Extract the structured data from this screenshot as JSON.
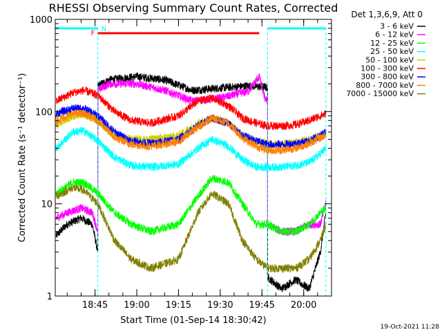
{
  "chart_data": {
    "type": "line",
    "title": "RHESSI Observing Summary Count Rates, Corrected",
    "xlabel": "Start Time (01-Sep-14 18:30:42)",
    "ylabel": "Corrected Count Rate (s⁻¹ detector⁻¹)",
    "ylim": [
      1,
      1000
    ],
    "yscale": "log",
    "xlim": [
      "18:30:42",
      "20:10:00"
    ],
    "x_ticks": [
      "18:45",
      "19:00",
      "19:15",
      "19:30",
      "19:45",
      "20:00"
    ],
    "y_ticks": [
      "1",
      "10",
      "100",
      "1000"
    ],
    "legend_title": "Det 1,3,6,9, Att 0",
    "legend_position": "right",
    "timestamp": "19-Oct-2021 11:28",
    "flags": [
      {
        "label": "N",
        "color": "#00ffff",
        "segments": [
          [
            "18:30:42",
            "18:46:00"
          ],
          [
            "19:47:00",
            "20:08:00"
          ]
        ]
      },
      {
        "label": "F",
        "color": "#ff0000",
        "segments": [
          [
            "18:46:00",
            "19:44:00"
          ]
        ]
      }
    ],
    "boundaries": [
      "18:46:00",
      "19:47:00",
      "20:08:00"
    ],
    "series": [
      {
        "name": "3 - 6 keV",
        "color": "#000000",
        "x": [
          "18:31",
          "18:35",
          "18:40",
          "18:44",
          "18:46:00",
          "18:46:01",
          "18:50",
          "19:00",
          "19:10",
          "19:20",
          "19:30",
          "19:40",
          "19:46",
          "19:47:00",
          "19:47:01",
          "19:52",
          "19:57",
          "20:02",
          "20:06",
          "20:08"
        ],
        "y": [
          4.5,
          6,
          7,
          6,
          3,
          190,
          220,
          240,
          220,
          170,
          180,
          190,
          185,
          180,
          1.6,
          1.2,
          1.5,
          1.2,
          3,
          8
        ]
      },
      {
        "name": "6 - 12 keV",
        "color": "#ff00ff",
        "x": [
          "18:31",
          "18:35",
          "18:40",
          "18:44",
          "18:46:00",
          "18:46:01",
          "18:50",
          "19:00",
          "19:10",
          "19:20",
          "19:30",
          "19:40",
          "19:44",
          "19:46",
          "19:47:00",
          "19:47:01",
          "19:52",
          "19:57",
          "20:02",
          "20:06",
          "20:08"
        ],
        "y": [
          7,
          8,
          9,
          8,
          5,
          170,
          200,
          200,
          170,
          130,
          140,
          165,
          240,
          140,
          130,
          6,
          5,
          5,
          6,
          6,
          10
        ]
      },
      {
        "name": "12 - 25 keV",
        "color": "#00ff00",
        "x": [
          "18:31",
          "18:37",
          "18:41",
          "18:46",
          "18:52",
          "18:58",
          "19:05",
          "19:15",
          "19:22",
          "19:27",
          "19:33",
          "19:38",
          "19:43",
          "19:47",
          "19:52",
          "19:57",
          "20:02",
          "20:06",
          "20:08"
        ],
        "y": [
          13,
          17,
          17,
          13,
          8,
          6,
          5,
          6,
          12,
          19,
          17,
          10,
          6,
          6,
          5,
          5,
          6,
          8,
          9
        ]
      },
      {
        "name": "25 - 50 keV",
        "color": "#00ffff",
        "x": [
          "18:31",
          "18:37",
          "18:41",
          "18:46",
          "18:52",
          "18:58",
          "19:05",
          "19:15",
          "19:22",
          "19:27",
          "19:33",
          "19:38",
          "19:43",
          "19:47",
          "19:52",
          "19:57",
          "20:02",
          "20:06",
          "20:08"
        ],
        "y": [
          40,
          60,
          62,
          48,
          32,
          26,
          25,
          27,
          40,
          50,
          42,
          30,
          25,
          25,
          25,
          26,
          28,
          35,
          40
        ]
      },
      {
        "name": "50 - 100 keV",
        "color": "#cccc00",
        "x": [
          "18:31",
          "18:37",
          "18:41",
          "18:46",
          "18:52",
          "18:58",
          "19:05",
          "19:15",
          "19:22",
          "19:27",
          "19:33",
          "19:38",
          "19:43",
          "19:47",
          "19:52",
          "19:57",
          "20:02",
          "20:06",
          "20:08"
        ],
        "y": [
          70,
          90,
          95,
          80,
          55,
          50,
          50,
          55,
          75,
          85,
          75,
          55,
          48,
          45,
          44,
          46,
          50,
          55,
          58
        ]
      },
      {
        "name": "100 - 300 keV",
        "color": "#ff0000",
        "x": [
          "18:31",
          "18:37",
          "18:41",
          "18:46",
          "18:52",
          "18:58",
          "19:05",
          "19:15",
          "19:22",
          "19:27",
          "19:33",
          "19:38",
          "19:43",
          "19:47",
          "19:52",
          "19:57",
          "20:02",
          "20:06",
          "20:08"
        ],
        "y": [
          130,
          160,
          170,
          150,
          100,
          80,
          75,
          90,
          130,
          140,
          115,
          85,
          75,
          70,
          70,
          72,
          80,
          90,
          95
        ]
      },
      {
        "name": "300 - 800 keV",
        "color": "#0000ff",
        "x": [
          "18:31",
          "18:37",
          "18:41",
          "18:46",
          "18:52",
          "18:58",
          "19:05",
          "19:15",
          "19:22",
          "19:27",
          "19:33",
          "19:38",
          "19:43",
          "19:47",
          "19:52",
          "19:57",
          "20:02",
          "20:06",
          "20:08"
        ],
        "y": [
          95,
          108,
          108,
          90,
          60,
          48,
          45,
          50,
          70,
          85,
          75,
          55,
          48,
          44,
          44,
          45,
          48,
          55,
          60
        ]
      },
      {
        "name": "800 - 7000 keV",
        "color": "#ff8000",
        "x": [
          "18:31",
          "18:37",
          "18:41",
          "18:46",
          "18:52",
          "18:58",
          "19:05",
          "19:15",
          "19:22",
          "19:27",
          "19:33",
          "19:38",
          "19:43",
          "19:47",
          "19:52",
          "19:57",
          "20:02",
          "20:06",
          "20:08"
        ],
        "y": [
          80,
          95,
          95,
          80,
          52,
          44,
          42,
          47,
          68,
          85,
          75,
          52,
          42,
          38,
          38,
          40,
          45,
          52,
          56
        ]
      },
      {
        "name": "7000 - 15000 keV",
        "color": "#808000",
        "x": [
          "18:31",
          "18:37",
          "18:41",
          "18:46",
          "18:52",
          "18:58",
          "19:05",
          "19:15",
          "19:22",
          "19:27",
          "19:33",
          "19:38",
          "19:43",
          "19:47",
          "19:52",
          "19:57",
          "20:02",
          "20:06",
          "20:08"
        ],
        "y": [
          12,
          15,
          14,
          10,
          4,
          2.5,
          2,
          2.5,
          8,
          13,
          10,
          4,
          2.5,
          2,
          2,
          2,
          2.5,
          4,
          6
        ]
      }
    ]
  }
}
